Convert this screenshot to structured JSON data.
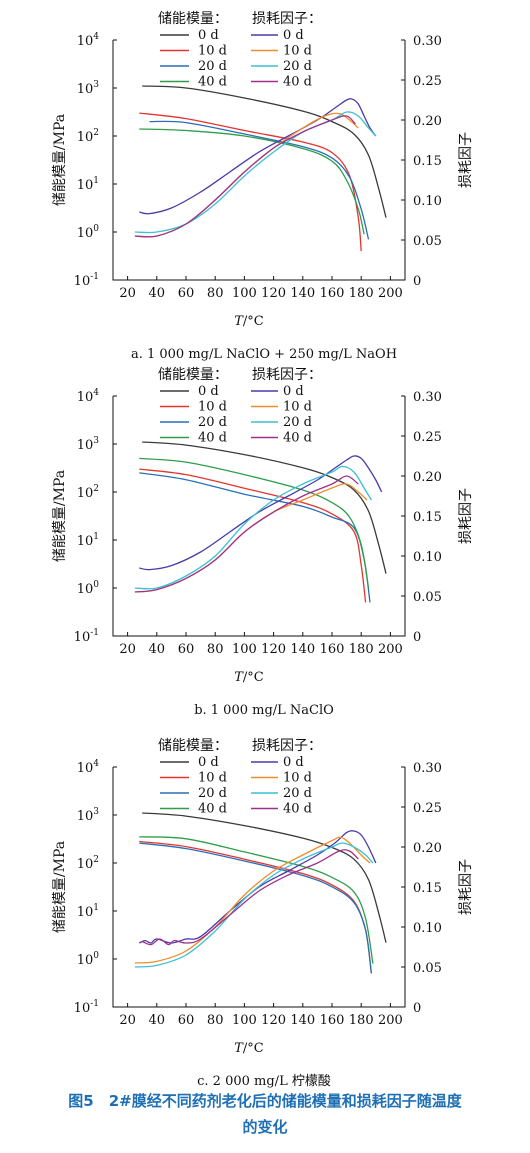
{
  "legend": {
    "storage_header": "储能模量：",
    "loss_header": "损耗因子：",
    "labels": [
      "0 d",
      "10 d",
      "20 d",
      "40 d"
    ]
  },
  "colors": {
    "storage": [
      "#3a3a3a",
      "#e3342f",
      "#2a6fb6",
      "#2e9e4b"
    ],
    "loss": [
      "#4a3aa8",
      "#f08c2a",
      "#39c0d6",
      "#a0308a"
    ]
  },
  "axes": {
    "ylabel_left": "储能模量/MPa",
    "ylabel_right": "损耗因子",
    "xlabel_T": "T",
    "xlabel_unit": "/°C",
    "x_ticks": [
      "20",
      "40",
      "60",
      "80",
      "100",
      "120",
      "140",
      "160",
      "180",
      "200"
    ],
    "left_tick_base": "10",
    "left_tick_exps": [
      "-1",
      "0",
      "1",
      "2",
      "3",
      "4"
    ],
    "right_ticks": [
      "0",
      "0.05",
      "0.10",
      "0.15",
      "0.20",
      "0.25",
      "0.30"
    ]
  },
  "figure": {
    "caption_line1": "图5　2#膜经不同药剂老化后的储能模量和损耗因子随温度",
    "caption_line2": "的变化"
  },
  "chart_data": [
    {
      "type": "line",
      "subtitle": "a. 1 000 mg/L NaClO + 250 mg/L NaOH",
      "xlabel": "T/°C",
      "ylabel": "储能模量/MPa",
      "ylabel_right": "损耗因子",
      "xlim": [
        10,
        210
      ],
      "ylim_left_log10": [
        -1,
        4
      ],
      "ylim_right": [
        0,
        0.3
      ],
      "legend_position": "top",
      "storage_modulus_series": [
        {
          "name": "0 d",
          "x": [
            30,
            60,
            100,
            140,
            160,
            175,
            185,
            192,
            197
          ],
          "y": [
            1100,
            1000,
            620,
            330,
            200,
            110,
            40,
            8,
            2
          ]
        },
        {
          "name": "10 d",
          "x": [
            28,
            60,
            100,
            140,
            160,
            172,
            178,
            180
          ],
          "y": [
            300,
            230,
            130,
            75,
            45,
            15,
            2,
            0.4
          ]
        },
        {
          "name": "20 d",
          "x": [
            35,
            60,
            100,
            140,
            160,
            172,
            180,
            185
          ],
          "y": [
            200,
            190,
            110,
            60,
            35,
            14,
            3,
            0.7
          ]
        },
        {
          "name": "40 d",
          "x": [
            28,
            60,
            100,
            140,
            160,
            170,
            178,
            182
          ],
          "y": [
            140,
            130,
            100,
            55,
            30,
            12,
            3,
            0.9
          ]
        }
      ],
      "loss_factor_series": [
        {
          "name": "0 d",
          "x": [
            28,
            35,
            50,
            70,
            90,
            110,
            130,
            150,
            162,
            170,
            174,
            178,
            182,
            186,
            190
          ],
          "y": [
            0.085,
            0.083,
            0.09,
            0.11,
            0.135,
            0.16,
            0.18,
            0.2,
            0.215,
            0.225,
            0.226,
            0.22,
            0.205,
            0.19,
            0.18
          ]
        },
        {
          "name": "10 d",
          "x": [
            25,
            40,
            60,
            80,
            100,
            120,
            140,
            155,
            165,
            172,
            178
          ],
          "y": [
            0.055,
            0.055,
            0.07,
            0.1,
            0.135,
            0.165,
            0.19,
            0.205,
            0.208,
            0.2,
            0.19
          ]
        },
        {
          "name": "20 d",
          "x": [
            25,
            40,
            60,
            80,
            100,
            120,
            140,
            160,
            170,
            178,
            185,
            190
          ],
          "y": [
            0.06,
            0.06,
            0.07,
            0.095,
            0.13,
            0.16,
            0.185,
            0.2,
            0.21,
            0.205,
            0.19,
            0.18
          ]
        },
        {
          "name": "40 d",
          "x": [
            25,
            40,
            60,
            80,
            100,
            120,
            140,
            160,
            170,
            176
          ],
          "y": [
            0.055,
            0.055,
            0.07,
            0.1,
            0.135,
            0.165,
            0.185,
            0.2,
            0.205,
            0.195
          ]
        }
      ]
    },
    {
      "type": "line",
      "subtitle": "b. 1 000 mg/L NaClO",
      "xlabel": "T/°C",
      "ylabel": "储能模量/MPa",
      "ylabel_right": "损耗因子",
      "xlim": [
        10,
        210
      ],
      "ylim_left_log10": [
        -1,
        4
      ],
      "ylim_right": [
        0,
        0.3
      ],
      "legend_position": "top",
      "storage_modulus_series": [
        {
          "name": "0 d",
          "x": [
            30,
            60,
            100,
            140,
            160,
            175,
            185,
            192,
            197
          ],
          "y": [
            1100,
            950,
            600,
            320,
            200,
            110,
            40,
            8,
            2
          ]
        },
        {
          "name": "10 d",
          "x": [
            28,
            60,
            100,
            140,
            160,
            175,
            180,
            183
          ],
          "y": [
            300,
            230,
            120,
            60,
            35,
            15,
            3,
            0.5
          ]
        },
        {
          "name": "20 d",
          "x": [
            28,
            60,
            100,
            140,
            160,
            175,
            182,
            186
          ],
          "y": [
            250,
            180,
            90,
            50,
            30,
            18,
            4,
            0.5
          ]
        },
        {
          "name": "40 d",
          "x": [
            28,
            60,
            100,
            140,
            160,
            172,
            180,
            185
          ],
          "y": [
            500,
            420,
            230,
            110,
            60,
            30,
            8,
            1
          ]
        }
      ],
      "loss_factor_series": [
        {
          "name": "0 d",
          "x": [
            28,
            35,
            50,
            70,
            90,
            110,
            130,
            150,
            162,
            170,
            175,
            180,
            185,
            190,
            194
          ],
          "y": [
            0.085,
            0.083,
            0.088,
            0.105,
            0.13,
            0.155,
            0.175,
            0.195,
            0.21,
            0.22,
            0.225,
            0.222,
            0.21,
            0.195,
            0.18
          ]
        },
        {
          "name": "10 d",
          "x": [
            25,
            40,
            60,
            80,
            100,
            120,
            140,
            160,
            170,
            178,
            184
          ],
          "y": [
            0.055,
            0.058,
            0.072,
            0.095,
            0.13,
            0.155,
            0.17,
            0.185,
            0.19,
            0.18,
            0.17
          ]
        },
        {
          "name": "20 d",
          "x": [
            25,
            40,
            60,
            80,
            100,
            120,
            140,
            160,
            167,
            175,
            182,
            187
          ],
          "y": [
            0.06,
            0.06,
            0.075,
            0.1,
            0.14,
            0.17,
            0.19,
            0.205,
            0.212,
            0.205,
            0.185,
            0.17
          ]
        },
        {
          "name": "40 d",
          "x": [
            25,
            40,
            60,
            80,
            100,
            120,
            140,
            160,
            170,
            178
          ],
          "y": [
            0.055,
            0.058,
            0.072,
            0.095,
            0.13,
            0.155,
            0.175,
            0.19,
            0.2,
            0.19
          ]
        }
      ]
    },
    {
      "type": "line",
      "subtitle": "c. 2 000 mg/L 柠檬酸",
      "xlabel": "T/°C",
      "ylabel": "储能模量/MPa",
      "ylabel_right": "损耗因子",
      "xlim": [
        10,
        210
      ],
      "ylim_left_log10": [
        -1,
        4
      ],
      "ylim_right": [
        0,
        0.3
      ],
      "legend_position": "top",
      "storage_modulus_series": [
        {
          "name": "0 d",
          "x": [
            30,
            60,
            100,
            140,
            160,
            175,
            185,
            192,
            197
          ],
          "y": [
            1100,
            950,
            600,
            330,
            210,
            120,
            45,
            9,
            2.2
          ]
        },
        {
          "name": "10 d",
          "x": [
            28,
            60,
            100,
            140,
            160,
            175,
            183,
            187
          ],
          "y": [
            280,
            220,
            120,
            60,
            35,
            16,
            4,
            0.5
          ]
        },
        {
          "name": "20 d",
          "x": [
            28,
            60,
            100,
            140,
            160,
            175,
            183,
            187
          ],
          "y": [
            260,
            200,
            110,
            55,
            32,
            15,
            4,
            0.5
          ]
        },
        {
          "name": "40 d",
          "x": [
            28,
            60,
            100,
            140,
            160,
            175,
            183,
            188
          ],
          "y": [
            350,
            320,
            170,
            85,
            50,
            25,
            7,
            0.8
          ]
        }
      ],
      "loss_factor_series": [
        {
          "name": "0 d",
          "x": [
            28,
            32,
            36,
            40,
            50,
            60,
            70,
            90,
            110,
            130,
            150,
            162,
            170,
            175,
            180,
            185,
            190
          ],
          "y": [
            0.08,
            0.083,
            0.08,
            0.085,
            0.08,
            0.085,
            0.088,
            0.12,
            0.15,
            0.17,
            0.19,
            0.205,
            0.218,
            0.22,
            0.215,
            0.2,
            0.18
          ]
        },
        {
          "name": "10 d",
          "x": [
            25,
            40,
            60,
            80,
            100,
            120,
            140,
            160,
            166,
            172,
            180,
            186
          ],
          "y": [
            0.055,
            0.057,
            0.07,
            0.1,
            0.14,
            0.17,
            0.19,
            0.208,
            0.212,
            0.205,
            0.19,
            0.18
          ]
        },
        {
          "name": "20 d",
          "x": [
            25,
            40,
            60,
            80,
            100,
            120,
            140,
            160,
            167,
            175,
            183,
            188
          ],
          "y": [
            0.05,
            0.052,
            0.065,
            0.095,
            0.135,
            0.165,
            0.185,
            0.2,
            0.205,
            0.2,
            0.19,
            0.18
          ]
        },
        {
          "name": "40 d",
          "x": [
            30,
            36,
            42,
            48,
            52,
            60,
            70,
            90,
            110,
            130,
            150,
            165,
            172,
            178
          ],
          "y": [
            0.082,
            0.078,
            0.085,
            0.078,
            0.083,
            0.08,
            0.085,
            0.115,
            0.145,
            0.165,
            0.18,
            0.195,
            0.195,
            0.185
          ]
        }
      ]
    }
  ]
}
